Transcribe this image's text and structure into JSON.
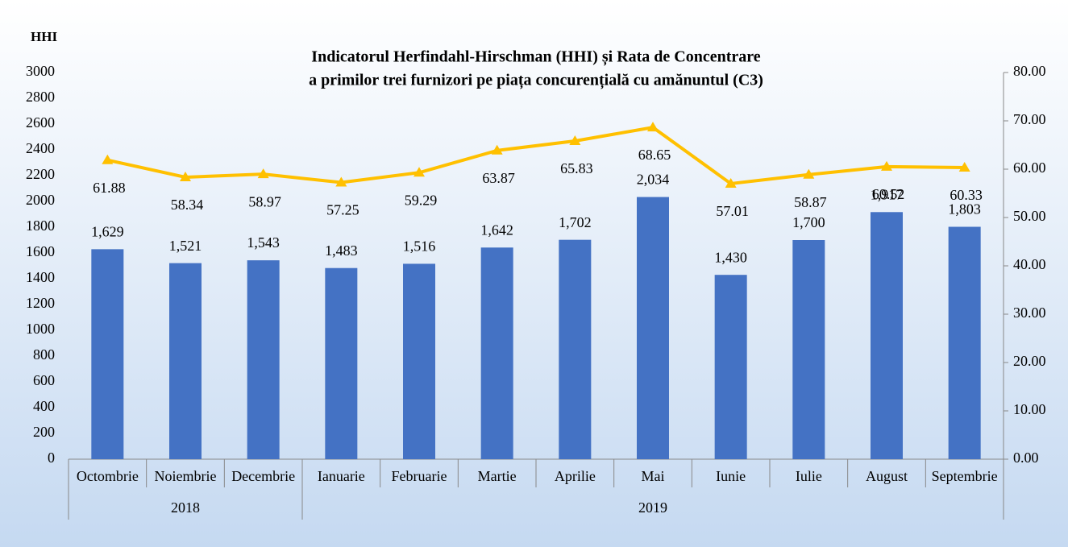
{
  "chart_data": {
    "type": "bar-line",
    "title": [
      "Indicatorul Herfindahl-Hirschman (HHI) și Rata de Concentrare",
      "a primilor trei furnizori pe piața concurențială cu amănuntul (C3)"
    ],
    "y_label": "HHI",
    "categories": [
      "Octombrie",
      "Noiembrie",
      "Decembrie",
      "Ianuarie",
      "Februarie",
      "Martie",
      "Aprilie",
      "Mai",
      "Iunie",
      "Iulie",
      "August",
      "Septembrie"
    ],
    "group_labels": [
      "2018",
      "2018",
      "2018",
      "2019",
      "2019",
      "2019",
      "2019",
      "2019",
      "2019",
      "2019",
      "2019",
      "2019"
    ],
    "series": [
      {
        "type": "bar",
        "color": "#4472c4",
        "values": [
          1629,
          1521,
          1543,
          1483,
          1516,
          1642,
          1702,
          2034,
          1430,
          1700,
          1917,
          1803
        ],
        "value_labels": [
          "1,629",
          "1,521",
          "1,543",
          "1,483",
          "1,516",
          "1,642",
          "1,702",
          "2,034",
          "1,430",
          "1,700",
          "1,917",
          "1,803"
        ]
      },
      {
        "type": "line",
        "axis": "y2",
        "color": "#ffc000",
        "values": [
          61.88,
          58.34,
          58.97,
          57.25,
          59.29,
          63.87,
          65.83,
          68.65,
          57.01,
          58.87,
          60.52,
          60.33
        ]
      }
    ],
    "ylim": [
      0,
      3000
    ],
    "yticks": [
      0,
      200,
      400,
      600,
      800,
      1000,
      1200,
      1400,
      1600,
      1800,
      2000,
      2200,
      2400,
      2600,
      2800,
      3000
    ],
    "y2lim": [
      0,
      80
    ],
    "y2ticks": [
      {
        "value": 0,
        "label": "0.00"
      },
      {
        "value": 10,
        "label": "10.00"
      },
      {
        "value": 20,
        "label": "20.00"
      },
      {
        "value": 30,
        "label": "30.00"
      },
      {
        "value": 40,
        "label": "40.00"
      },
      {
        "value": 50,
        "label": "50.00"
      },
      {
        "value": 60,
        "label": "60.00"
      },
      {
        "value": 70,
        "label": "70.00"
      },
      {
        "value": 80,
        "label": "80.00"
      }
    ]
  }
}
